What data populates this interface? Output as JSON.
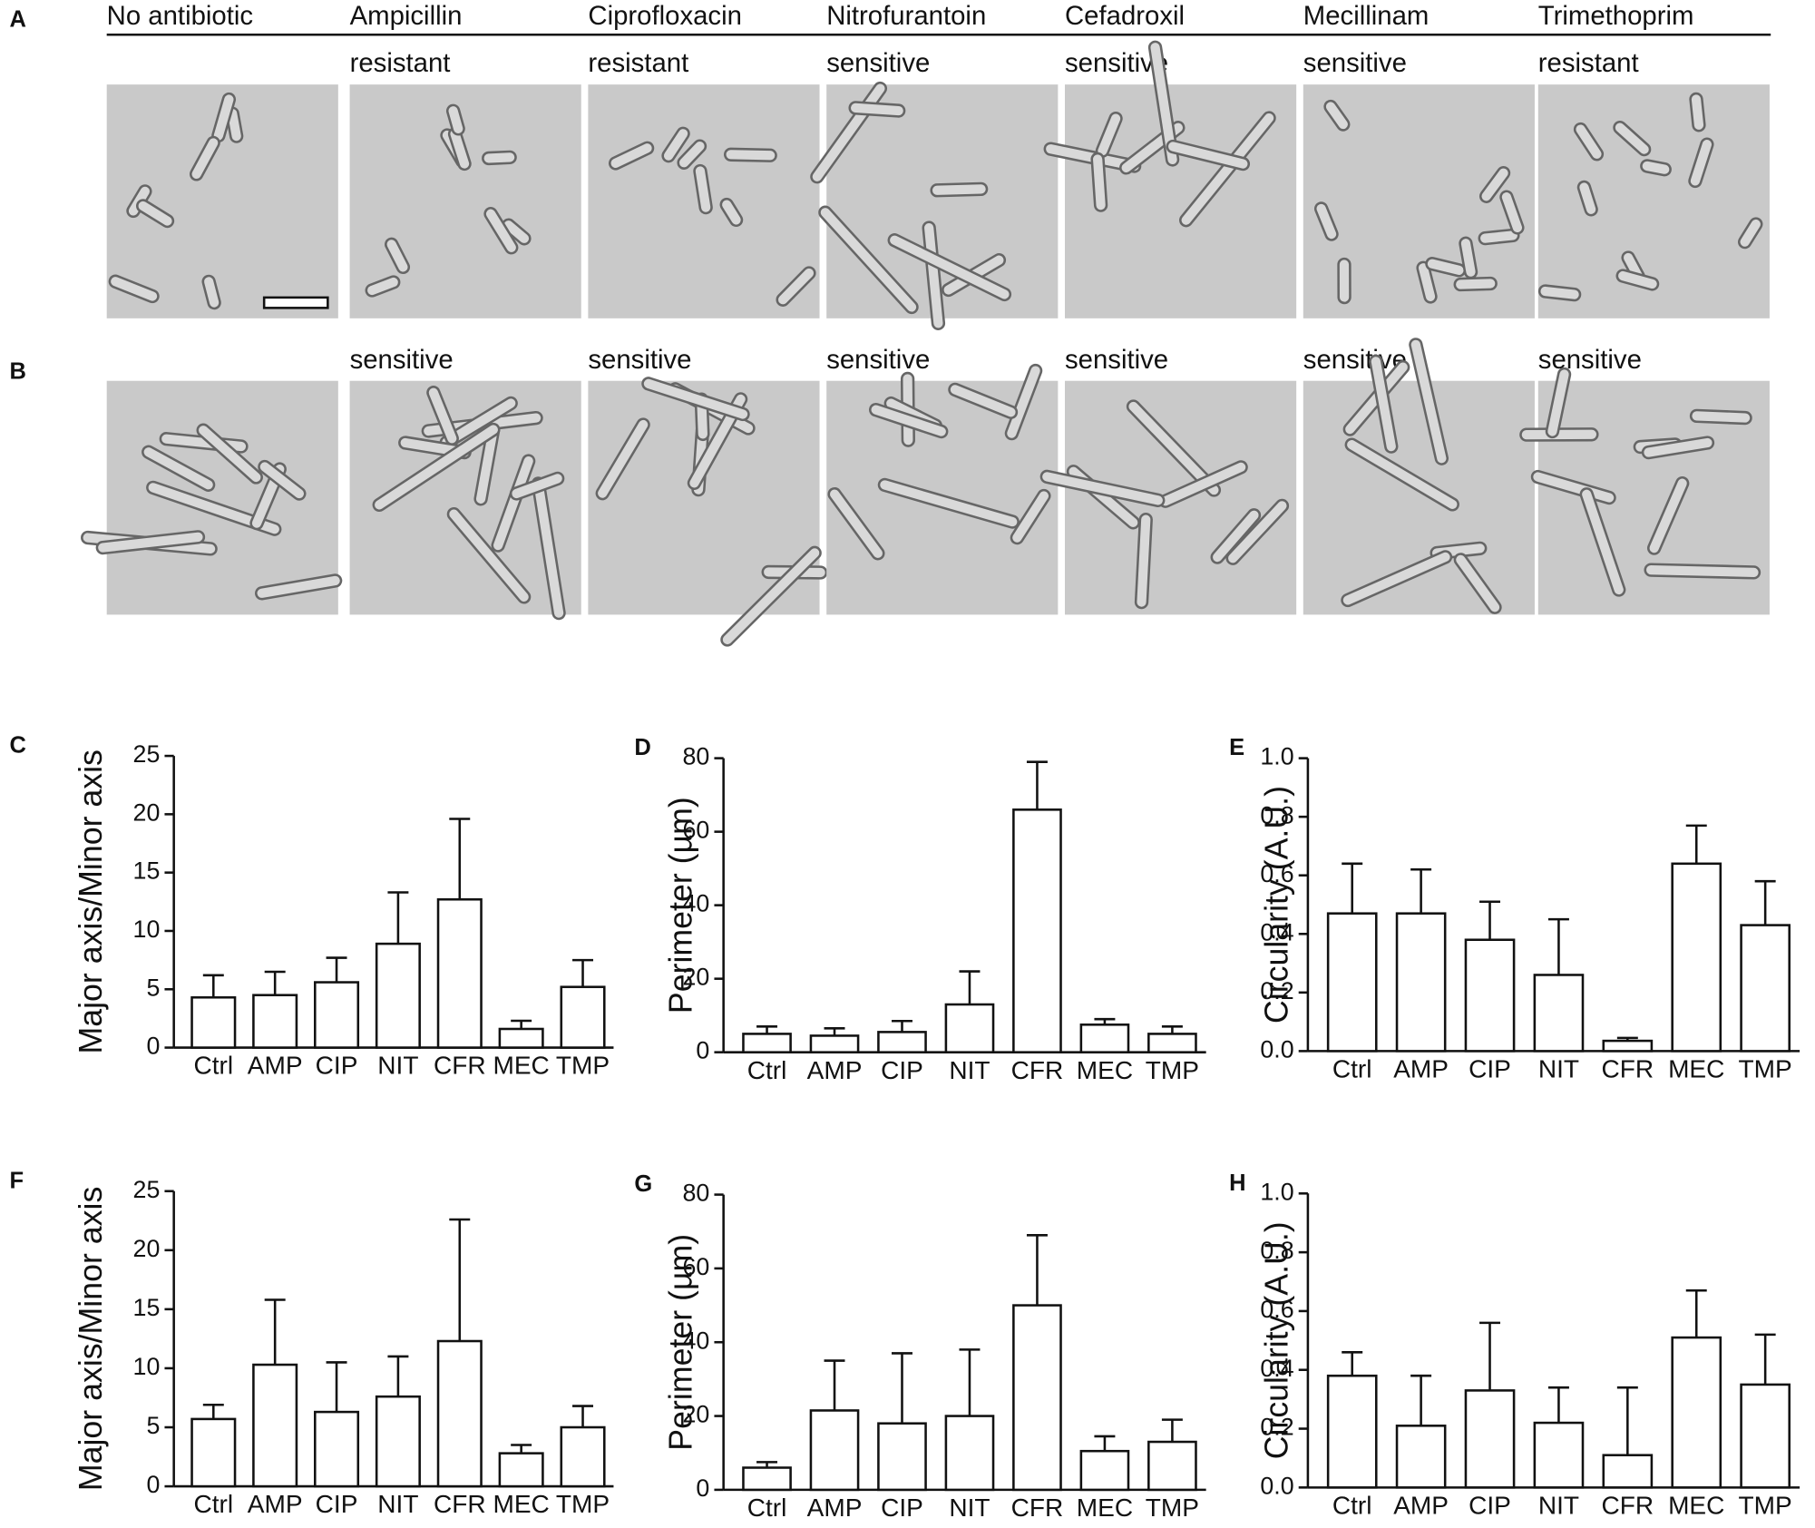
{
  "figure": {
    "columns": [
      "No antibiotic",
      "Ampicillin",
      "Ciprofloxacin",
      "Nitrofurantoin",
      "Cefadroxil",
      "Mecillinam",
      "Trimethoprim"
    ],
    "rows": [
      {
        "label": "A",
        "status": [
          "resistant",
          "resistant",
          "sensitive",
          "sensitive",
          "sensitive",
          "resistant"
        ]
      },
      {
        "label": "B",
        "status": [
          "sensitive",
          "sensitive",
          "sensitive",
          "sensitive",
          "sensitive",
          "sensitive"
        ]
      }
    ]
  },
  "chart_data": [
    {
      "panel": "C",
      "type": "bar",
      "ylabel": "Major axis/Minor axis",
      "categories": [
        "Ctrl",
        "AMP",
        "CIP",
        "NIT",
        "CFR",
        "MEC",
        "TMP"
      ],
      "values": [
        4.3,
        4.5,
        5.6,
        8.9,
        12.7,
        1.6,
        5.2
      ],
      "errors": [
        1.9,
        2.0,
        2.1,
        4.4,
        6.9,
        0.7,
        2.3
      ],
      "ylim": [
        0,
        25
      ],
      "yticks": [
        0,
        5,
        10,
        15,
        20,
        25
      ]
    },
    {
      "panel": "D",
      "type": "bar",
      "ylabel": "Perimeter (µm)",
      "categories": [
        "Ctrl",
        "AMP",
        "CIP",
        "NIT",
        "CFR",
        "MEC",
        "TMP"
      ],
      "values": [
        5,
        4.5,
        5.5,
        13,
        66,
        7.5,
        5
      ],
      "errors": [
        2,
        2,
        3,
        9,
        13,
        1.5,
        2
      ],
      "ylim": [
        0,
        80
      ],
      "yticks": [
        0,
        20,
        40,
        60,
        80
      ]
    },
    {
      "panel": "E",
      "type": "bar",
      "ylabel": "Circularity (A.U.)",
      "categories": [
        "Ctrl",
        "AMP",
        "CIP",
        "NIT",
        "CFR",
        "MEC",
        "TMP"
      ],
      "values": [
        0.47,
        0.47,
        0.38,
        0.26,
        0.035,
        0.64,
        0.43
      ],
      "errors": [
        0.17,
        0.15,
        0.13,
        0.19,
        0.01,
        0.13,
        0.15
      ],
      "ylim": [
        0,
        1
      ],
      "yticks": [
        {
          "value": 0,
          "label": "0.0"
        },
        {
          "value": 0.2,
          "label": "0.2"
        },
        {
          "value": 0.4,
          "label": "0.4"
        },
        {
          "value": 0.6,
          "label": "0.6"
        },
        {
          "value": 0.8,
          "label": "0.8"
        },
        {
          "value": 1,
          "label": "1.0"
        }
      ]
    },
    {
      "panel": "F",
      "type": "bar",
      "ylabel": "Major axis/Minor axis",
      "categories": [
        "Ctrl",
        "AMP",
        "CIP",
        "NIT",
        "CFR",
        "MEC",
        "TMP"
      ],
      "values": [
        5.7,
        10.3,
        6.3,
        7.6,
        12.3,
        2.8,
        5
      ],
      "errors": [
        1.2,
        5.5,
        4.2,
        3.4,
        10.3,
        0.7,
        1.8
      ],
      "ylim": [
        0,
        25
      ],
      "yticks": [
        0,
        5,
        10,
        15,
        20,
        25
      ]
    },
    {
      "panel": "G",
      "type": "bar",
      "ylabel": "Perimeter (µm)",
      "categories": [
        "Ctrl",
        "AMP",
        "CIP",
        "NIT",
        "CFR",
        "MEC",
        "TMP"
      ],
      "values": [
        6,
        21.5,
        18,
        20,
        50,
        10.5,
        13
      ],
      "errors": [
        1.5,
        13.5,
        19,
        18,
        19,
        4,
        6
      ],
      "ylim": [
        0,
        80
      ],
      "yticks": [
        0,
        20,
        40,
        60,
        80
      ]
    },
    {
      "panel": "H",
      "type": "bar",
      "ylabel": "Circularity (A.U.)",
      "categories": [
        "Ctrl",
        "AMP",
        "CIP",
        "NIT",
        "CFR",
        "MEC",
        "TMP"
      ],
      "values": [
        0.38,
        0.21,
        0.33,
        0.22,
        0.11,
        0.51,
        0.35
      ],
      "errors": [
        0.08,
        0.17,
        0.23,
        0.12,
        0.23,
        0.16,
        0.17
      ],
      "ylim": [
        0,
        1
      ],
      "yticks": [
        {
          "value": 0,
          "label": "0.0"
        },
        {
          "value": 0.2,
          "label": "0.2"
        },
        {
          "value": 0.4,
          "label": "0.4"
        },
        {
          "value": 0.6,
          "label": "0.6"
        },
        {
          "value": 0.8,
          "label": "0.8"
        },
        {
          "value": 1,
          "label": "1.0"
        }
      ]
    }
  ]
}
